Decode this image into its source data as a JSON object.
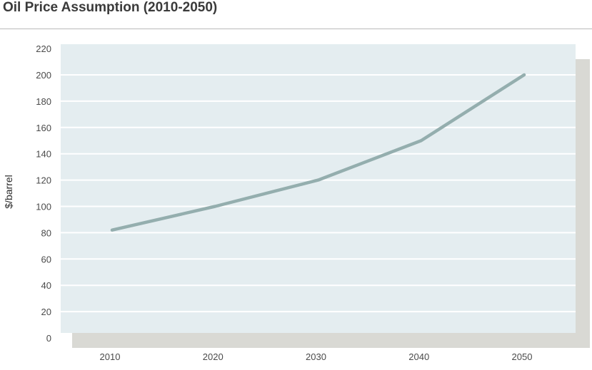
{
  "chart_data": {
    "type": "line",
    "title": "Oil Price Assumption (2010-2050)",
    "xlabel": "",
    "ylabel": "$/barrel",
    "categories": [
      "2010",
      "2020",
      "2030",
      "2040",
      "2050"
    ],
    "series": [
      {
        "values": [
          82,
          100,
          120,
          150,
          200
        ]
      }
    ],
    "ylim": [
      0,
      220
    ],
    "yticks": [
      0,
      20,
      40,
      60,
      80,
      100,
      120,
      140,
      160,
      180,
      200,
      220
    ],
    "grid": true,
    "legend": "none",
    "colors": {
      "line": "#94aeae",
      "plot_background": "#e4edf0",
      "gridline": "#ffffff",
      "shadow": "#d9d9d4"
    }
  }
}
